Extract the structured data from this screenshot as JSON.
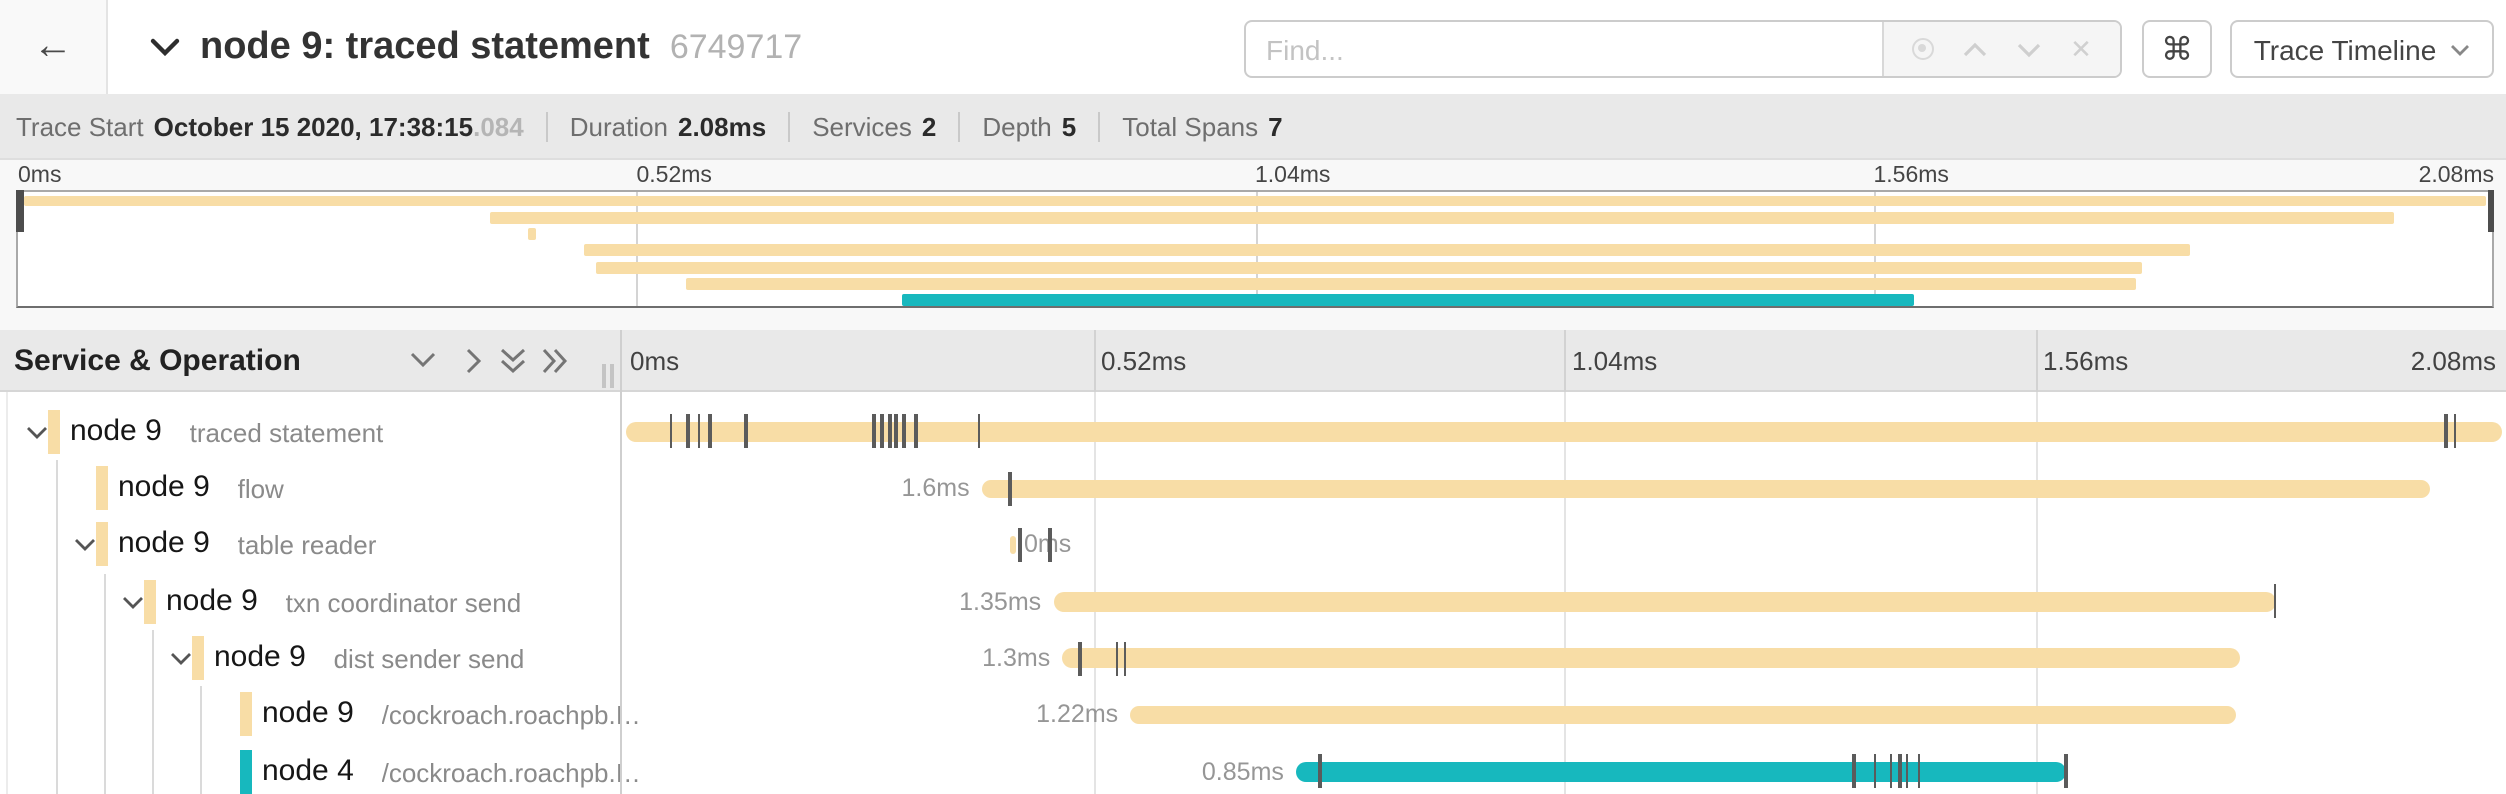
{
  "app": {
    "back_arrow": "←",
    "title": "node 9: traced statement",
    "trace_id": "6749717",
    "find_placeholder": "Find...",
    "shortcut_key": "⌘",
    "view_selector": "Trace Timeline"
  },
  "summary": {
    "items": [
      {
        "label": "Trace Start",
        "value": "October 15 2020, 17:38:15",
        "suffix": ".084"
      },
      {
        "label": "Duration",
        "value": "2.08ms"
      },
      {
        "label": "Services",
        "value": "2"
      },
      {
        "label": "Depth",
        "value": "5"
      },
      {
        "label": "Total Spans",
        "value": "7"
      }
    ]
  },
  "timeline": {
    "total_ms": 2.08,
    "tick_labels": [
      "0ms",
      "0.52ms",
      "1.04ms",
      "1.56ms",
      "2.08ms"
    ],
    "left_header": "Service & Operation"
  },
  "colors": {
    "beige": "#F8DDA6",
    "teal": "#17B8BE",
    "log_tick": "#5b5b5b"
  },
  "spans": [
    {
      "service": "node 9",
      "operation": "traced statement",
      "level": 0,
      "has_children": true,
      "color": "beige",
      "start_ms": 0.005,
      "duration_ms": 2.07,
      "duration_label": "",
      "label_side": "none",
      "log_ticks_ms": [
        0.052,
        0.071,
        0.083,
        0.095,
        0.135,
        0.277,
        0.285,
        0.294,
        0.301,
        0.309,
        0.323,
        0.392,
        2.012,
        2.022
      ]
    },
    {
      "service": "node 9",
      "operation": "flow",
      "level": 1,
      "has_children": false,
      "color": "beige",
      "start_ms": 0.397,
      "duration_ms": 1.6,
      "duration_label": "1.6ms",
      "label_side": "left",
      "log_ticks_ms": [
        0.426
      ]
    },
    {
      "service": "node 9",
      "operation": "table reader",
      "level": 1,
      "has_children": true,
      "color": "beige",
      "start_ms": 0.429,
      "duration_ms": 0.006,
      "duration_label": "0ms",
      "label_side": "right",
      "log_ticks_ms": [
        0.438,
        0.471
      ]
    },
    {
      "service": "node 9",
      "operation": "txn coordinator send",
      "level": 2,
      "has_children": true,
      "color": "beige",
      "start_ms": 0.476,
      "duration_ms": 1.35,
      "duration_label": "1.35ms",
      "label_side": "left",
      "log_ticks_ms": [
        1.823
      ]
    },
    {
      "service": "node 9",
      "operation": "dist sender send",
      "level": 3,
      "has_children": true,
      "color": "beige",
      "start_ms": 0.486,
      "duration_ms": 1.3,
      "duration_label": "1.3ms",
      "label_side": "left",
      "log_ticks_ms": [
        0.504,
        0.545,
        0.554
      ]
    },
    {
      "service": "node 9",
      "operation": "/cockroach.roachpb.I…",
      "level": 4,
      "has_children": false,
      "color": "beige",
      "start_ms": 0.561,
      "duration_ms": 1.22,
      "duration_label": "1.22ms",
      "label_side": "left",
      "log_ticks_ms": []
    },
    {
      "service": "node 4",
      "operation": "/cockroach.roachpb.I…",
      "level": 4,
      "has_children": false,
      "color": "teal",
      "start_ms": 0.744,
      "duration_ms": 0.85,
      "duration_label": "0.85ms",
      "label_side": "left",
      "log_ticks_ms": [
        0.769,
        1.359,
        1.382,
        1.399,
        1.409,
        1.417,
        1.43,
        1.592
      ]
    }
  ]
}
